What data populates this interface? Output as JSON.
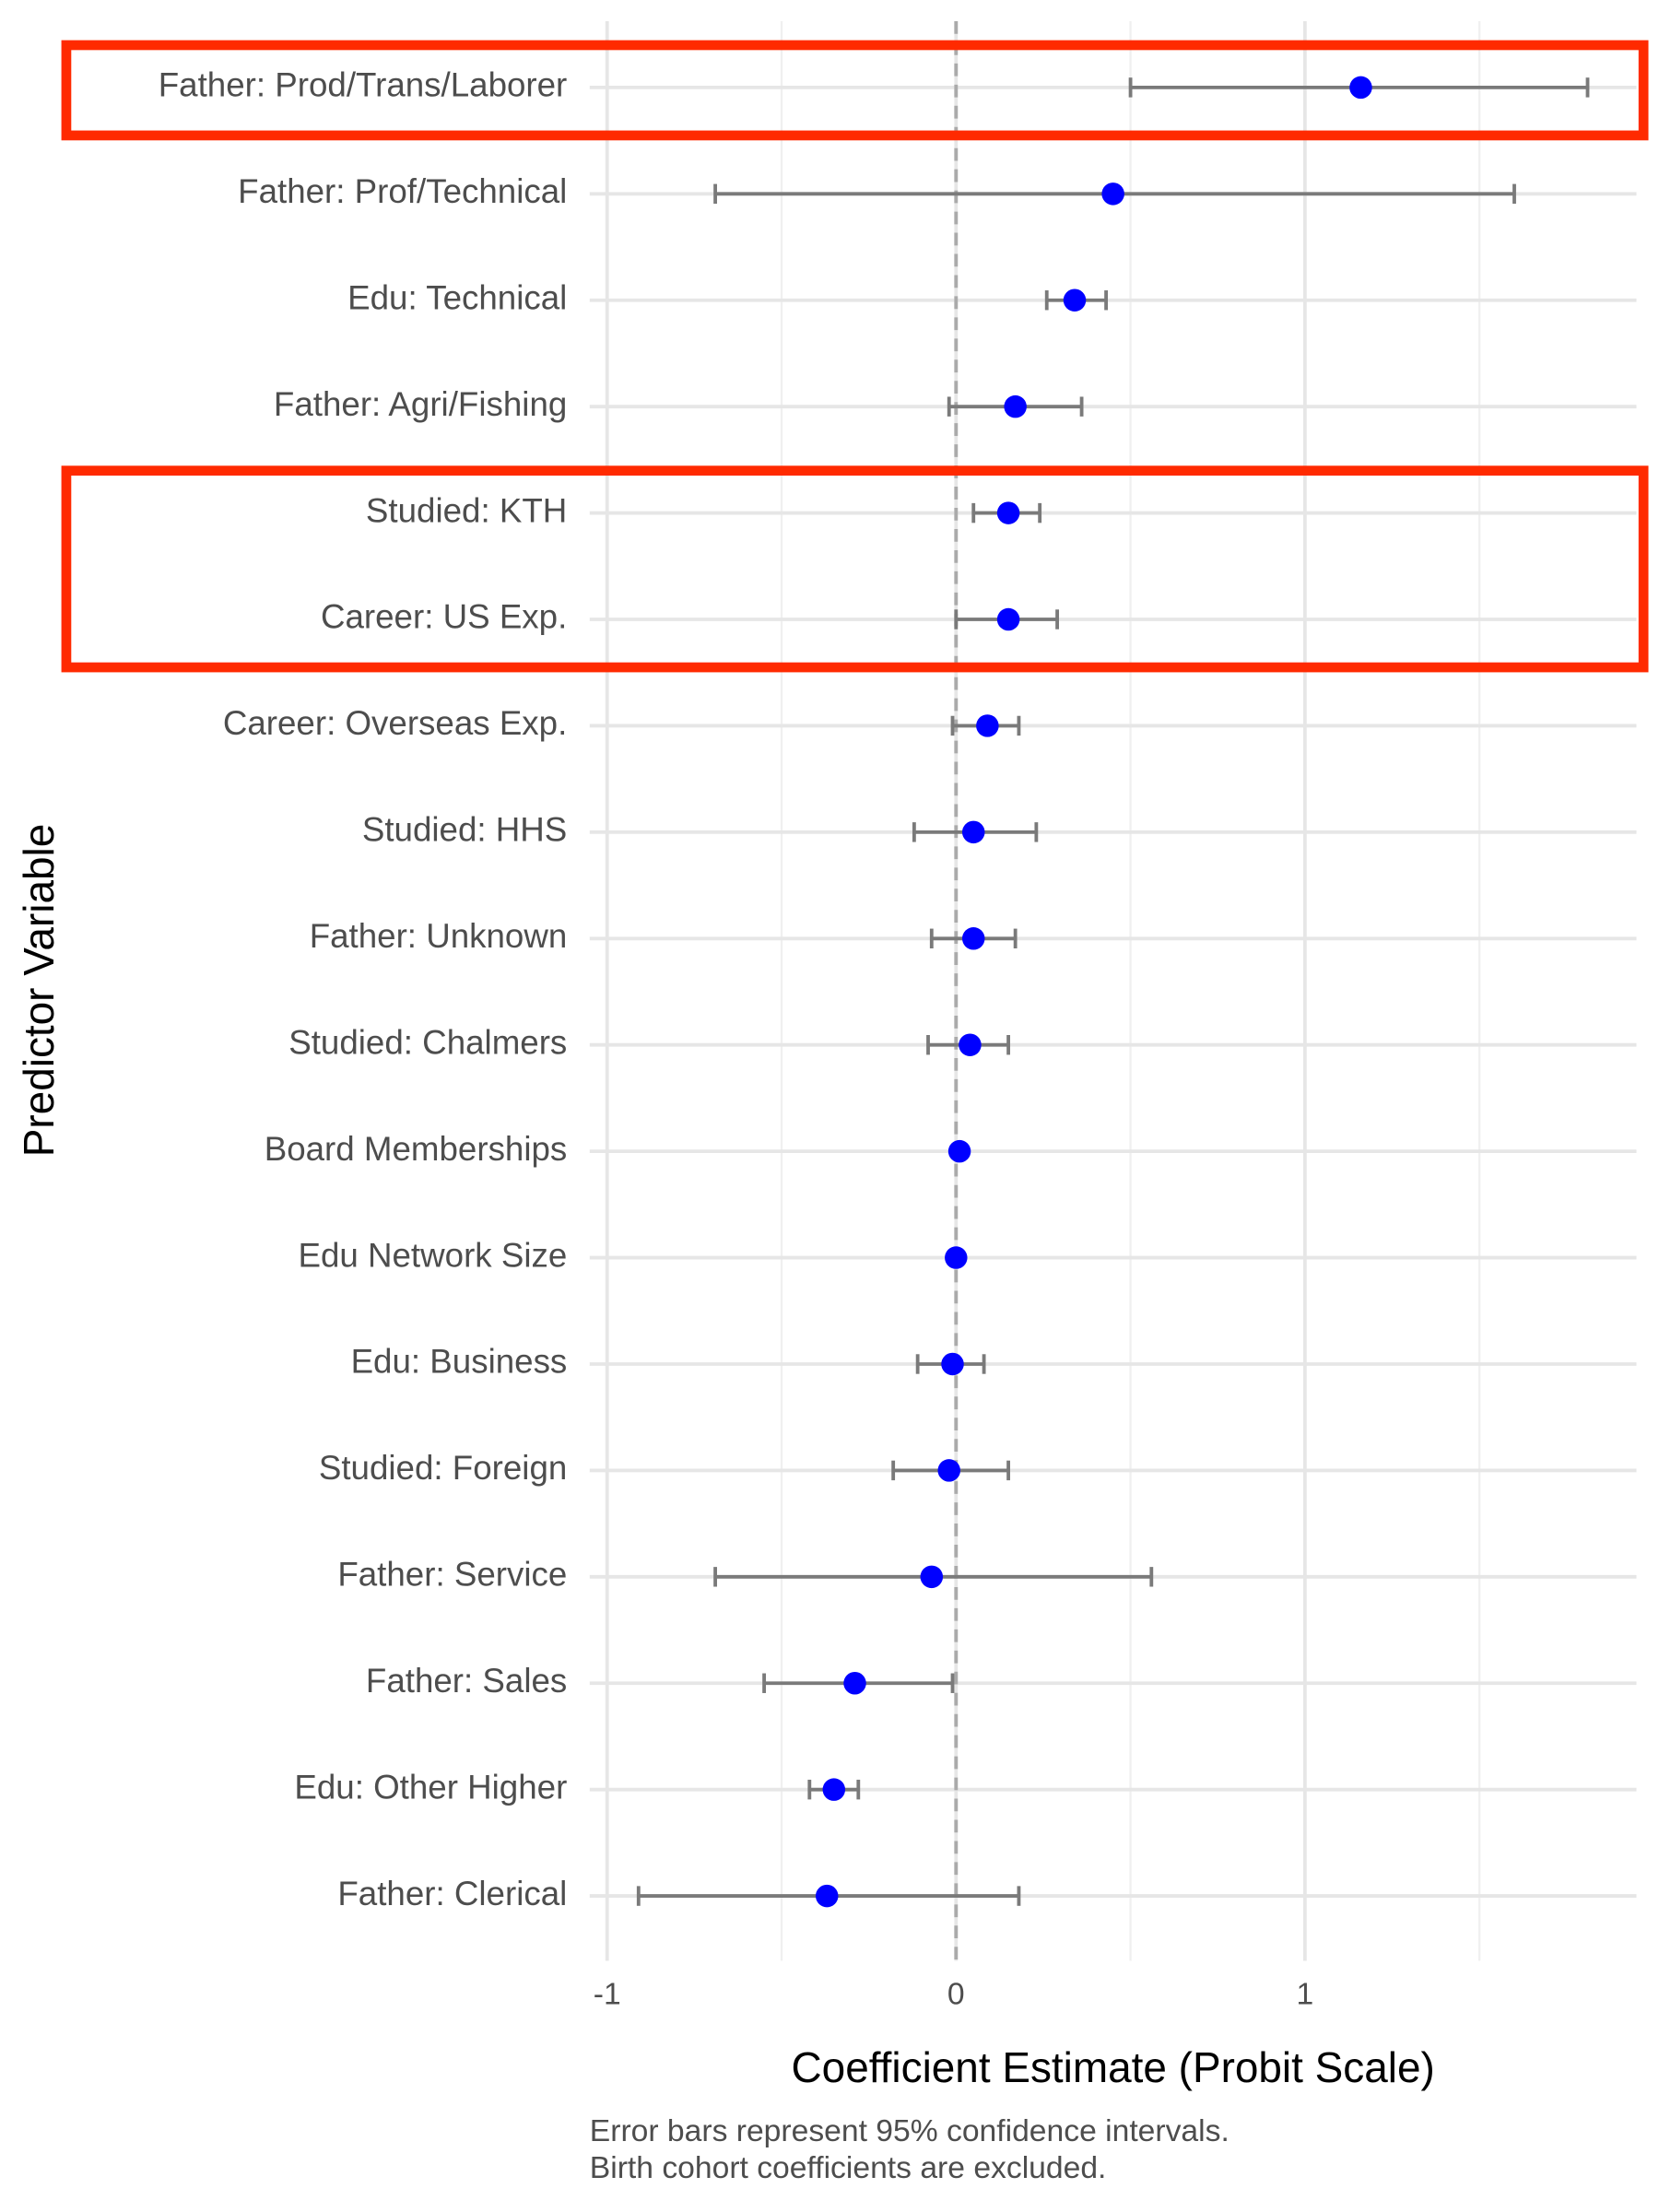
{
  "chart_data": {
    "type": "forest",
    "x_label": "Coefficient Estimate (Probit Scale)",
    "y_label": "Predictor Variable",
    "caption": [
      "Error bars represent 95% confidence intervals.",
      "Birth cohort coefficients are excluded."
    ],
    "categories": [
      "Father: Prod/Trans/Laborer",
      "Father: Prof/Technical",
      "Edu: Technical",
      "Father: Agri/Fishing",
      "Studied: KTH",
      "Career: US Exp.",
      "Career: Overseas Exp.",
      "Studied: HHS",
      "Father: Unknown",
      "Studied: Chalmers",
      "Board Memberships",
      "Edu Network Size",
      "Edu: Business",
      "Studied: Foreign",
      "Father: Service",
      "Father: Sales",
      "Edu: Other Higher",
      "Father: Clerical"
    ],
    "values": [
      1.16,
      0.45,
      0.34,
      0.17,
      0.15,
      0.15,
      0.09,
      0.05,
      0.05,
      0.04,
      0.01,
      0.0,
      -0.01,
      -0.02,
      -0.07,
      -0.29,
      -0.35,
      -0.37
    ],
    "lower": [
      0.5,
      -0.69,
      0.26,
      -0.02,
      0.05,
      0.0,
      -0.01,
      -0.12,
      -0.07,
      -0.08,
      0.0,
      -0.01,
      -0.11,
      -0.18,
      -0.69,
      -0.55,
      -0.42,
      -0.91
    ],
    "upper": [
      1.81,
      1.6,
      0.43,
      0.36,
      0.24,
      0.29,
      0.18,
      0.23,
      0.17,
      0.15,
      0.02,
      0.01,
      0.08,
      0.15,
      0.56,
      -0.01,
      -0.28,
      0.18
    ],
    "color": "#0000ff",
    "errorbar_color": "#7a7a7a",
    "xlim": [
      -1.05,
      1.95
    ],
    "xticks": [
      {
        "value": -1,
        "label": "-1"
      },
      0,
      1
    ],
    "xminor": [
      -0.5,
      0.5,
      1.5
    ],
    "reference_line": 0,
    "grid": true,
    "highlight_color": "#ff2a00",
    "highlight_groups": [
      [
        0,
        0
      ],
      [
        4,
        5
      ]
    ]
  }
}
